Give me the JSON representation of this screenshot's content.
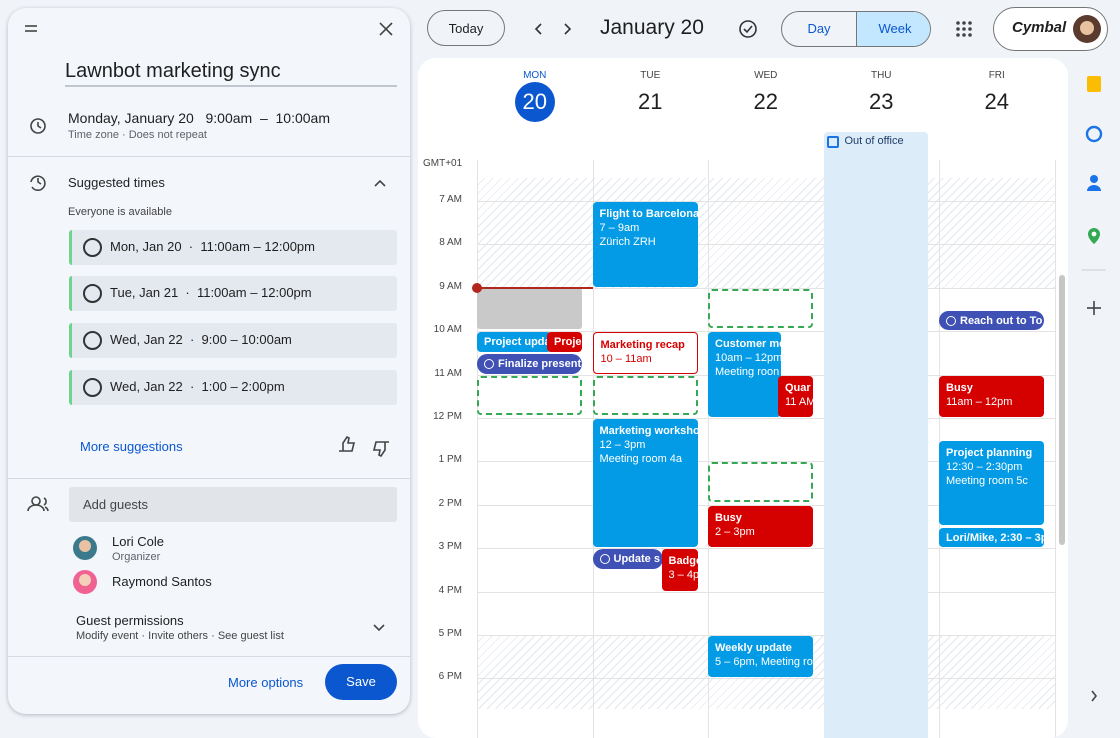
{
  "panel": {
    "title": "Lawnbot marketing sync",
    "datetime": "Monday, January 20   9:00am  –  10:00am",
    "recurrence": "Time zone · Does not repeat",
    "suggested_title": "Suggested times",
    "availability": "Everyone is available",
    "suggestions": [
      "Mon, Jan 20  ·  11:00am – 12:00pm",
      "Tue, Jan 21  ·  11:00am – 12:00pm",
      "Wed, Jan 22  ·  9:00 – 10:00am",
      "Wed, Jan 22  ·  1:00 – 2:00pm"
    ],
    "more_suggestions": "More suggestions",
    "add_guests": "Add guests",
    "guests": [
      {
        "name": "Lori Cole",
        "role": "Organizer"
      },
      {
        "name": "Raymond Santos"
      }
    ],
    "permissions_title": "Guest permissions",
    "permissions": "Modify event · Invite others · See guest list",
    "more_options": "More options",
    "save": "Save"
  },
  "toolbar": {
    "today": "Today",
    "date": "January 20",
    "views": [
      "Day",
      "Week"
    ],
    "account": "Cymbal"
  },
  "calendar": {
    "days": [
      {
        "weekday": "MON",
        "date": "20"
      },
      {
        "weekday": "TUE",
        "date": "21"
      },
      {
        "weekday": "WED",
        "date": "22"
      },
      {
        "weekday": "THU",
        "date": "23"
      },
      {
        "weekday": "FRI",
        "date": "24"
      }
    ],
    "timezone": "GMT+01",
    "hours": [
      "7 AM",
      "8 AM",
      "9 AM",
      "10 AM",
      "11 AM",
      "12 PM",
      "1 PM",
      "2 PM",
      "3 PM",
      "4 PM",
      "5 PM",
      "6 PM"
    ],
    "all_day": "Out of office",
    "events": [
      {
        "title": "Project upda",
        "details": []
      },
      {
        "title": "Proje",
        "details": []
      },
      {
        "title": "Finalize presenta",
        "details": []
      },
      {
        "title": "Flight to Barcelona",
        "details": [
          "7 – 9am",
          "Zürich ZRH"
        ]
      },
      {
        "title": "Marketing recap",
        "details": [
          "10 – 11am"
        ]
      },
      {
        "title": "Marketing worksho",
        "details": [
          "12 – 3pm",
          "Meeting room 4a"
        ]
      },
      {
        "title": "Update s",
        "details": []
      },
      {
        "title": "Badge",
        "details": [
          "3 – 4p"
        ]
      },
      {
        "title": "Customer me",
        "details": [
          "10am – 12pm",
          "Meeting roon"
        ]
      },
      {
        "title": "Quar",
        "details": [
          "11 AM"
        ]
      },
      {
        "title": "Busy",
        "details": [
          "2 – 3pm"
        ]
      },
      {
        "title": "Weekly update",
        "details": [
          "5 – 6pm, Meeting ro"
        ]
      },
      {
        "title": "Reach out to To",
        "details": []
      },
      {
        "title": "Busy",
        "details": [
          "11am – 12pm"
        ]
      },
      {
        "title": "Project planning",
        "details": [
          "12:30 – 2:30pm",
          "Meeting room 5c"
        ]
      },
      {
        "title": "Lori/Mike, 2:30 – 3p",
        "details": []
      }
    ]
  }
}
